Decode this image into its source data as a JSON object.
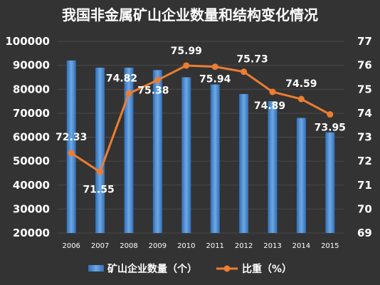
{
  "chart_data": {
    "type": "bar+line",
    "title": "我国非金属矿山企业数量和结构变化情况",
    "categories": [
      "2006",
      "2007",
      "2008",
      "2009",
      "2010",
      "2011",
      "2012",
      "2013",
      "2014",
      "2015"
    ],
    "series": [
      {
        "name": "矿山企业数量（个）",
        "type": "bar",
        "axis": "left",
        "values": [
          92000,
          89000,
          89000,
          88000,
          85000,
          82000,
          78000,
          75000,
          68000,
          62000
        ]
      },
      {
        "name": "比重（%）",
        "type": "line",
        "axis": "right",
        "values": [
          72.33,
          71.55,
          74.82,
          75.38,
          75.99,
          75.94,
          75.73,
          74.89,
          74.59,
          73.95
        ]
      }
    ],
    "y_left": {
      "min": 20000,
      "max": 100000,
      "step": 10000
    },
    "y_right": {
      "min": 69,
      "max": 77,
      "step": 1
    },
    "legend_position": "bottom",
    "grid": true
  },
  "colors": {
    "background": "#333333",
    "bar_light": "#6fa8e4",
    "bar_dark": "#2f6fb8",
    "line": "#ed7d31",
    "text": "#ffffff",
    "grid": "#4a4a4a"
  }
}
